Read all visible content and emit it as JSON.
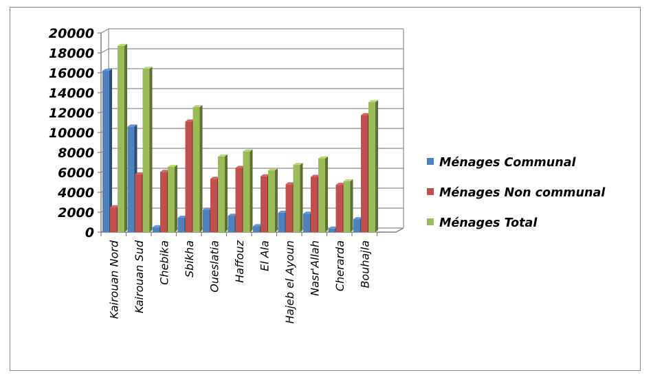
{
  "chart_data": {
    "type": "bar",
    "categories": [
      "Kairouan Nord",
      "Kairouan Sud",
      "Chebika",
      "Sbikha",
      "Oueslatia",
      "Haffouz",
      "El Ala",
      "Hajeb el Ayoun",
      "Nasr'Allah",
      "Cherarda",
      "Bouhajla"
    ],
    "series": [
      {
        "name": "Ménages Communal",
        "color": "#4f81bd",
        "values": [
          16200,
          10600,
          500,
          1450,
          2250,
          1650,
          600,
          1950,
          1850,
          350,
          1300
        ]
      },
      {
        "name": "Ménages Non communal",
        "color": "#c0504d",
        "values": [
          2500,
          5800,
          6050,
          11100,
          5350,
          6450,
          5600,
          4800,
          5550,
          4750,
          11750
        ]
      },
      {
        "name": "Ménages Total",
        "color": "#9bbb59",
        "values": [
          18700,
          16400,
          6550,
          12550,
          7600,
          8100,
          6200,
          6750,
          7400,
          5100,
          13050
        ]
      }
    ],
    "yticks": [
      0,
      2000,
      4000,
      6000,
      8000,
      10000,
      12000,
      14000,
      16000,
      18000,
      20000
    ],
    "ylim": [
      0,
      20000
    ],
    "grid": true,
    "legend_position": "right",
    "style": "3d-clustered-column"
  }
}
